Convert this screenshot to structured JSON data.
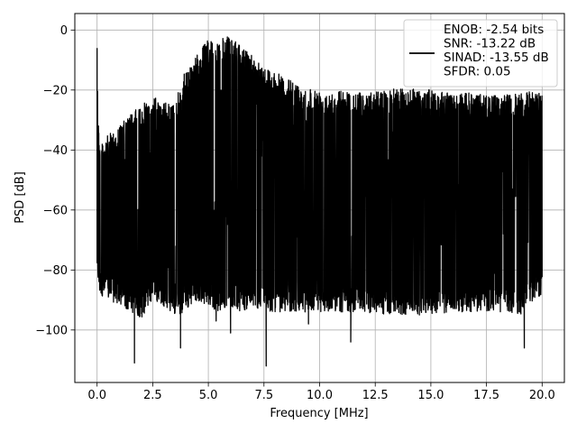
{
  "chart_data": {
    "type": "line",
    "xlabel": "Frequency [MHz]",
    "ylabel": "PSD [dB]",
    "xlim": [
      -1.0,
      21.0
    ],
    "ylim": [
      -117.5,
      5.5
    ],
    "xticks": [
      0.0,
      2.5,
      5.0,
      7.5,
      10.0,
      12.5,
      15.0,
      17.5,
      20.0
    ],
    "xtick_labels": [
      "0.0",
      "2.5",
      "5.0",
      "7.5",
      "10.0",
      "12.5",
      "15.0",
      "17.5",
      "20.0"
    ],
    "yticks": [
      0,
      -20,
      -40,
      -60,
      -80,
      -100
    ],
    "ytick_labels": [
      "0",
      "−20",
      "−40",
      "−60",
      "−80",
      "−100"
    ],
    "grid": true,
    "legend_position": "top-right",
    "series": [
      {
        "name": "ENOB: -2.54 bits\nSNR: -13.22 dB\nSINAD: -13.55 dB\nSFDR: 0.05",
        "color": "#000000",
        "envelope": {
          "x": [
            0.0,
            0.1,
            0.5,
            1.0,
            1.5,
            2.0,
            2.5,
            3.0,
            3.5,
            3.8,
            4.5,
            5.0,
            5.5,
            6.0,
            6.5,
            7.0,
            7.5,
            8.0,
            9.0,
            10.0,
            11.0,
            12.0,
            13.0,
            14.0,
            15.0,
            16.0,
            17.0,
            18.0,
            19.0,
            20.0
          ],
          "top": [
            -6,
            -38,
            -35,
            -32,
            -28,
            -25,
            -22,
            -24,
            -25,
            -16,
            -8,
            -3,
            -3,
            -2,
            -6,
            -8,
            -12,
            -14,
            -18,
            -20,
            -20,
            -21,
            -20,
            -19,
            -20,
            -21,
            -21,
            -22,
            -21,
            -20
          ],
          "bottom": [
            -80,
            -88,
            -90,
            -92,
            -94,
            -96,
            -90,
            -92,
            -95,
            -95,
            -90,
            -92,
            -94,
            -92,
            -94,
            -92,
            -94,
            -94,
            -94,
            -94,
            -94,
            -94,
            -95,
            -95,
            -95,
            -94,
            -94,
            -94,
            -95,
            -88
          ]
        },
        "notable_points": [
          {
            "x": 0.0,
            "y": -6
          },
          {
            "x": 1.68,
            "y": -111
          },
          {
            "x": 3.75,
            "y": -106
          },
          {
            "x": 5.35,
            "y": -97
          },
          {
            "x": 6.0,
            "y": -101
          },
          {
            "x": 7.6,
            "y": -112
          },
          {
            "x": 9.5,
            "y": -98
          },
          {
            "x": 11.4,
            "y": -104
          },
          {
            "x": 19.2,
            "y": -106
          }
        ]
      }
    ]
  }
}
